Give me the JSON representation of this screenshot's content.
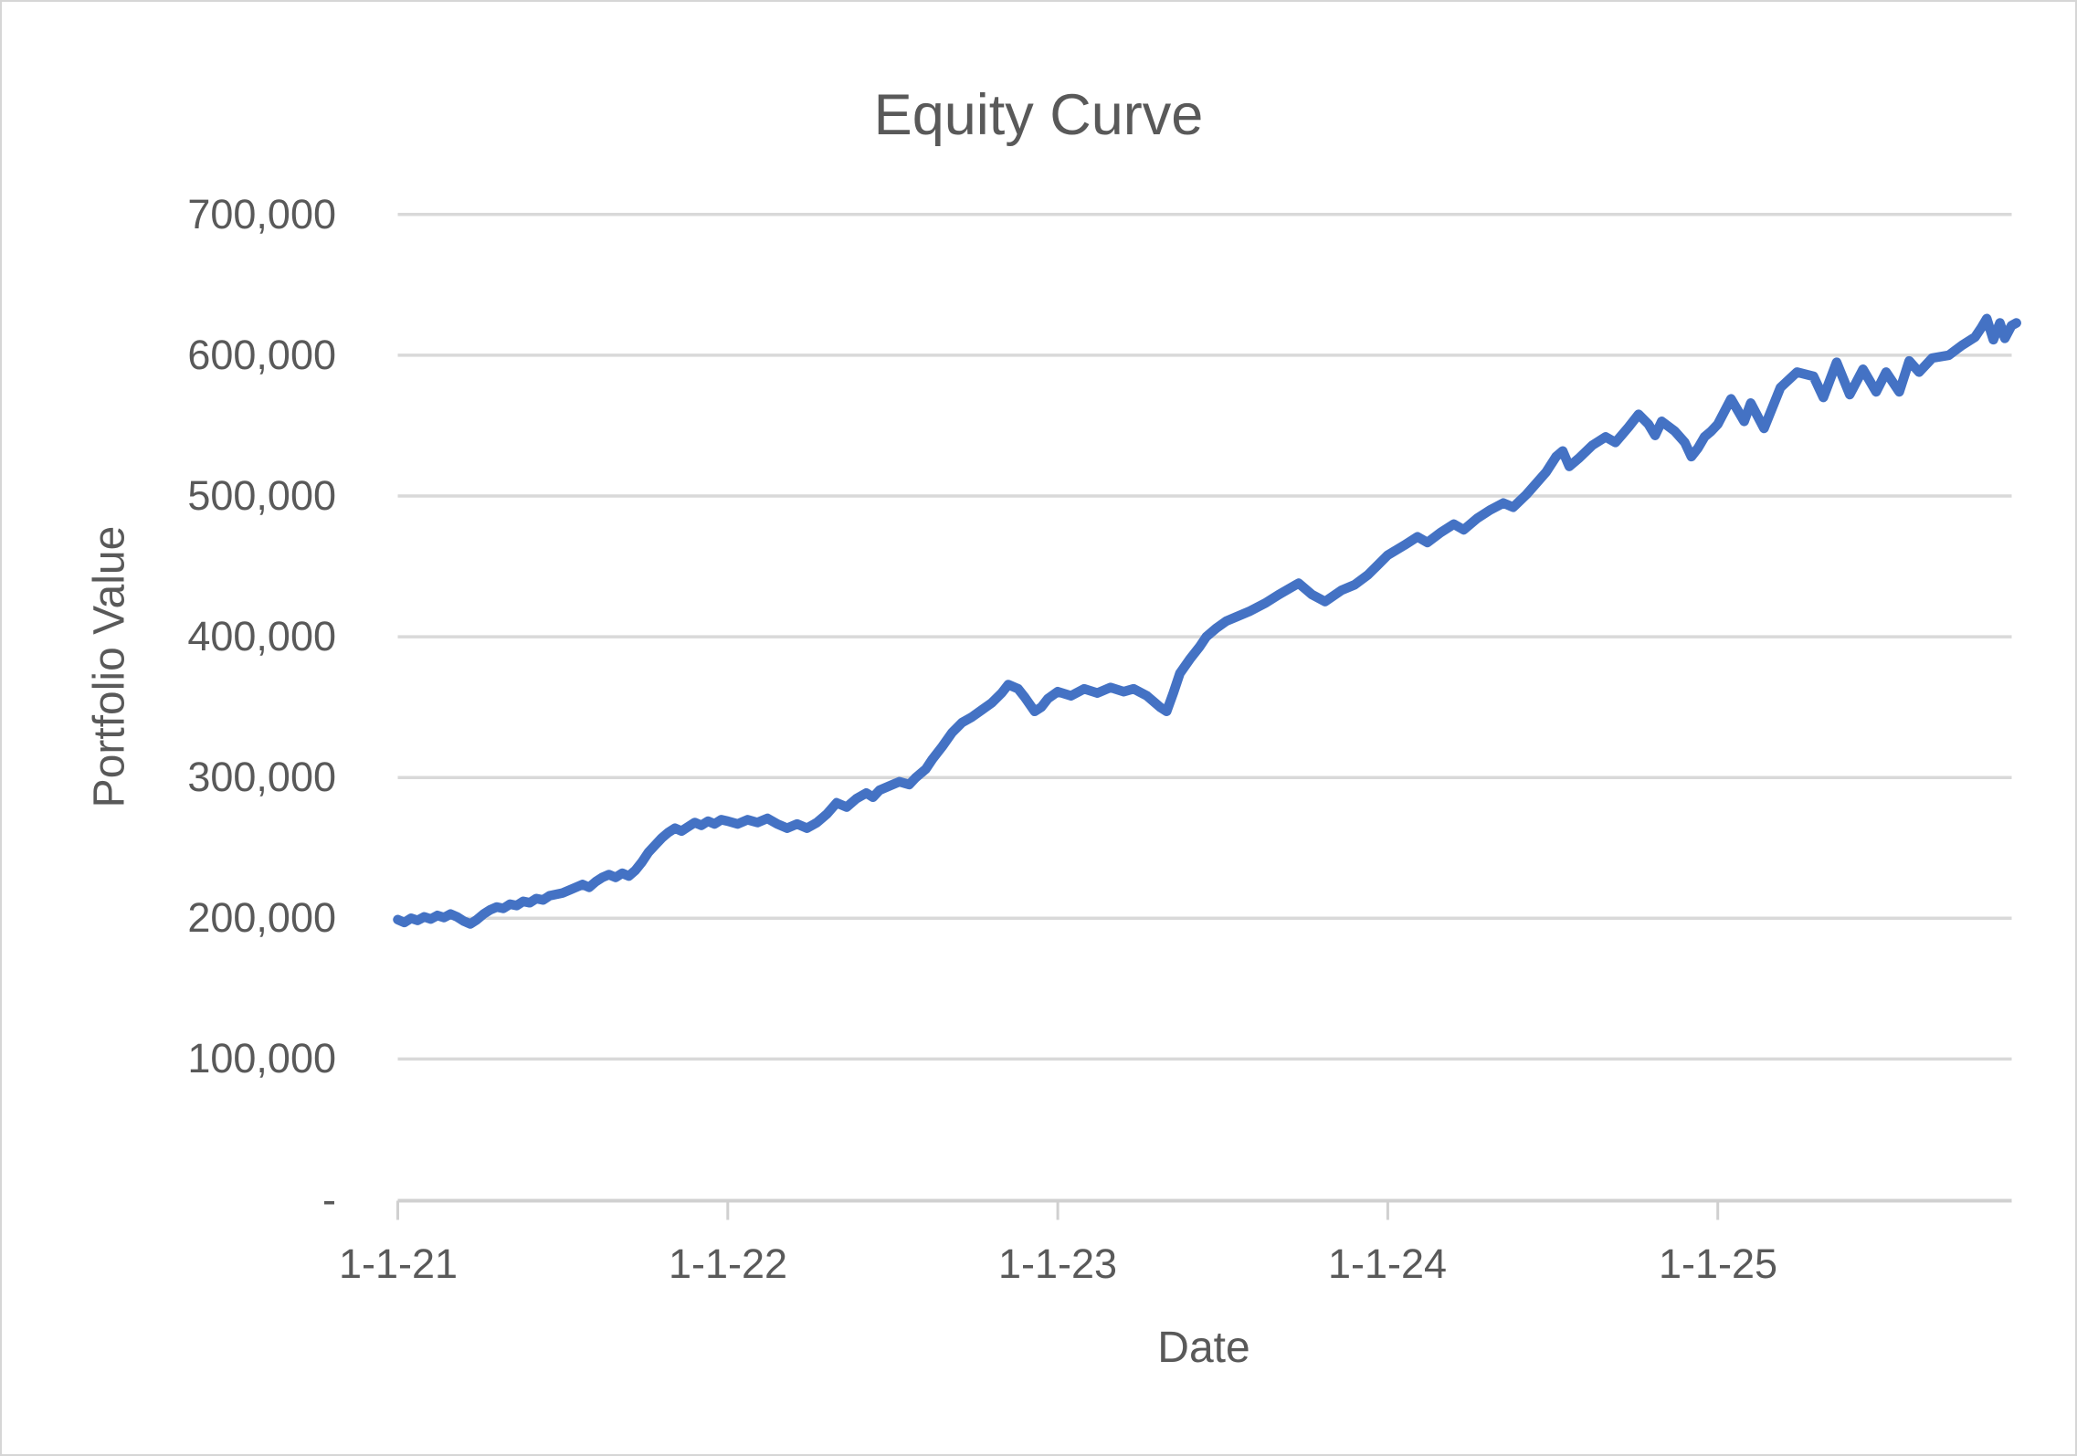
{
  "chart_data": {
    "type": "line",
    "title": "Equity Curve",
    "xlabel": "Date",
    "ylabel": "Portfolio Value",
    "ylim": [
      0,
      700000
    ],
    "grid": "horizontal",
    "legend": "none",
    "colors": {
      "line": "#4472C4",
      "gridline": "#D9D9D9",
      "axis": "#D0D0D0",
      "text": "#595959"
    },
    "y_ticks": {
      "values": [
        0,
        100000,
        200000,
        300000,
        400000,
        500000,
        600000,
        700000
      ],
      "labels": [
        "-",
        "100,000",
        "200,000",
        "300,000",
        "400,000",
        "500,000",
        "600,000",
        "700,000"
      ]
    },
    "x_ticks": {
      "years_offset": [
        0,
        1,
        2,
        3,
        4
      ],
      "labels": [
        "1-1-21",
        "1-1-22",
        "1-1-23",
        "1-1-24",
        "1-1-25"
      ]
    },
    "series": [
      {
        "name": "Portfolio Value",
        "color": "#4472C4",
        "x_years": [
          0.0,
          0.02,
          0.04,
          0.06,
          0.08,
          0.1,
          0.12,
          0.14,
          0.16,
          0.18,
          0.2,
          0.22,
          0.24,
          0.26,
          0.28,
          0.3,
          0.32,
          0.34,
          0.36,
          0.38,
          0.4,
          0.42,
          0.44,
          0.46,
          0.48,
          0.5,
          0.53,
          0.56,
          0.58,
          0.6,
          0.62,
          0.64,
          0.66,
          0.68,
          0.7,
          0.72,
          0.74,
          0.76,
          0.78,
          0.8,
          0.82,
          0.84,
          0.86,
          0.88,
          0.9,
          0.92,
          0.94,
          0.96,
          0.98,
          1.0,
          1.03,
          1.06,
          1.09,
          1.12,
          1.15,
          1.18,
          1.21,
          1.24,
          1.27,
          1.3,
          1.33,
          1.36,
          1.39,
          1.42,
          1.44,
          1.46,
          1.49,
          1.52,
          1.55,
          1.57,
          1.6,
          1.62,
          1.65,
          1.68,
          1.71,
          1.74,
          1.77,
          1.8,
          1.83,
          1.85,
          1.88,
          1.9,
          1.93,
          1.95,
          1.97,
          2.0,
          2.04,
          2.08,
          2.12,
          2.16,
          2.2,
          2.23,
          2.27,
          2.31,
          2.33,
          2.35,
          2.37,
          2.4,
          2.43,
          2.45,
          2.48,
          2.51,
          2.54,
          2.58,
          2.63,
          2.67,
          2.73,
          2.77,
          2.81,
          2.86,
          2.9,
          2.94,
          2.97,
          3.0,
          3.05,
          3.09,
          3.12,
          3.16,
          3.2,
          3.23,
          3.27,
          3.31,
          3.35,
          3.38,
          3.42,
          3.45,
          3.48,
          3.51,
          3.53,
          3.55,
          3.58,
          3.62,
          3.66,
          3.69,
          3.73,
          3.76,
          3.79,
          3.81,
          3.83,
          3.87,
          3.9,
          3.92,
          3.94,
          3.96,
          3.98,
          4.0,
          4.04,
          4.08,
          4.1,
          4.14,
          4.19,
          4.24,
          4.29,
          4.32,
          4.36,
          4.4,
          4.44,
          4.48,
          4.51,
          4.55,
          4.58,
          4.61,
          4.65,
          4.7,
          4.74,
          4.78,
          4.8,
          4.815,
          4.835,
          4.855,
          4.87,
          4.89,
          4.905
        ],
        "values": [
          199000,
          197000,
          200000,
          198500,
          201000,
          199500,
          202000,
          200500,
          203000,
          201000,
          198000,
          196000,
          199000,
          203000,
          206000,
          208000,
          207000,
          210000,
          209000,
          212000,
          211000,
          214000,
          213000,
          216000,
          217000,
          218000,
          221000,
          224000,
          222000,
          226000,
          229000,
          231000,
          229000,
          232000,
          230000,
          234000,
          240000,
          247000,
          252000,
          257000,
          261000,
          264000,
          262000,
          265000,
          268000,
          266000,
          269000,
          267000,
          270000,
          269000,
          267000,
          270000,
          268000,
          271000,
          267000,
          264000,
          267000,
          264000,
          268000,
          274000,
          282000,
          279000,
          285000,
          289000,
          286000,
          291000,
          294000,
          297000,
          295000,
          300000,
          306000,
          313000,
          322000,
          332000,
          339000,
          343000,
          348000,
          353000,
          360000,
          366000,
          363000,
          357000,
          347000,
          350000,
          356000,
          361000,
          358000,
          363000,
          360000,
          364000,
          361000,
          363000,
          358000,
          350000,
          347000,
          360000,
          374000,
          384000,
          393000,
          400000,
          406000,
          411000,
          414000,
          418000,
          424000,
          430000,
          438000,
          430000,
          425000,
          433000,
          437000,
          444000,
          451000,
          458000,
          465000,
          471000,
          467000,
          474000,
          480000,
          476000,
          484000,
          490000,
          495000,
          492000,
          501000,
          509000,
          517000,
          528000,
          532000,
          521000,
          527000,
          536000,
          542000,
          538000,
          549000,
          558000,
          551000,
          543000,
          553000,
          546000,
          538000,
          528000,
          534000,
          542000,
          546000,
          551000,
          569000,
          553000,
          566000,
          548000,
          577000,
          588000,
          585000,
          570000,
          595000,
          572000,
          590000,
          574000,
          588000,
          574000,
          596000,
          588000,
          598000,
          600000,
          607000,
          613000,
          620000,
          626000,
          611000,
          623000,
          612000,
          621000,
          623000
        ]
      }
    ]
  }
}
